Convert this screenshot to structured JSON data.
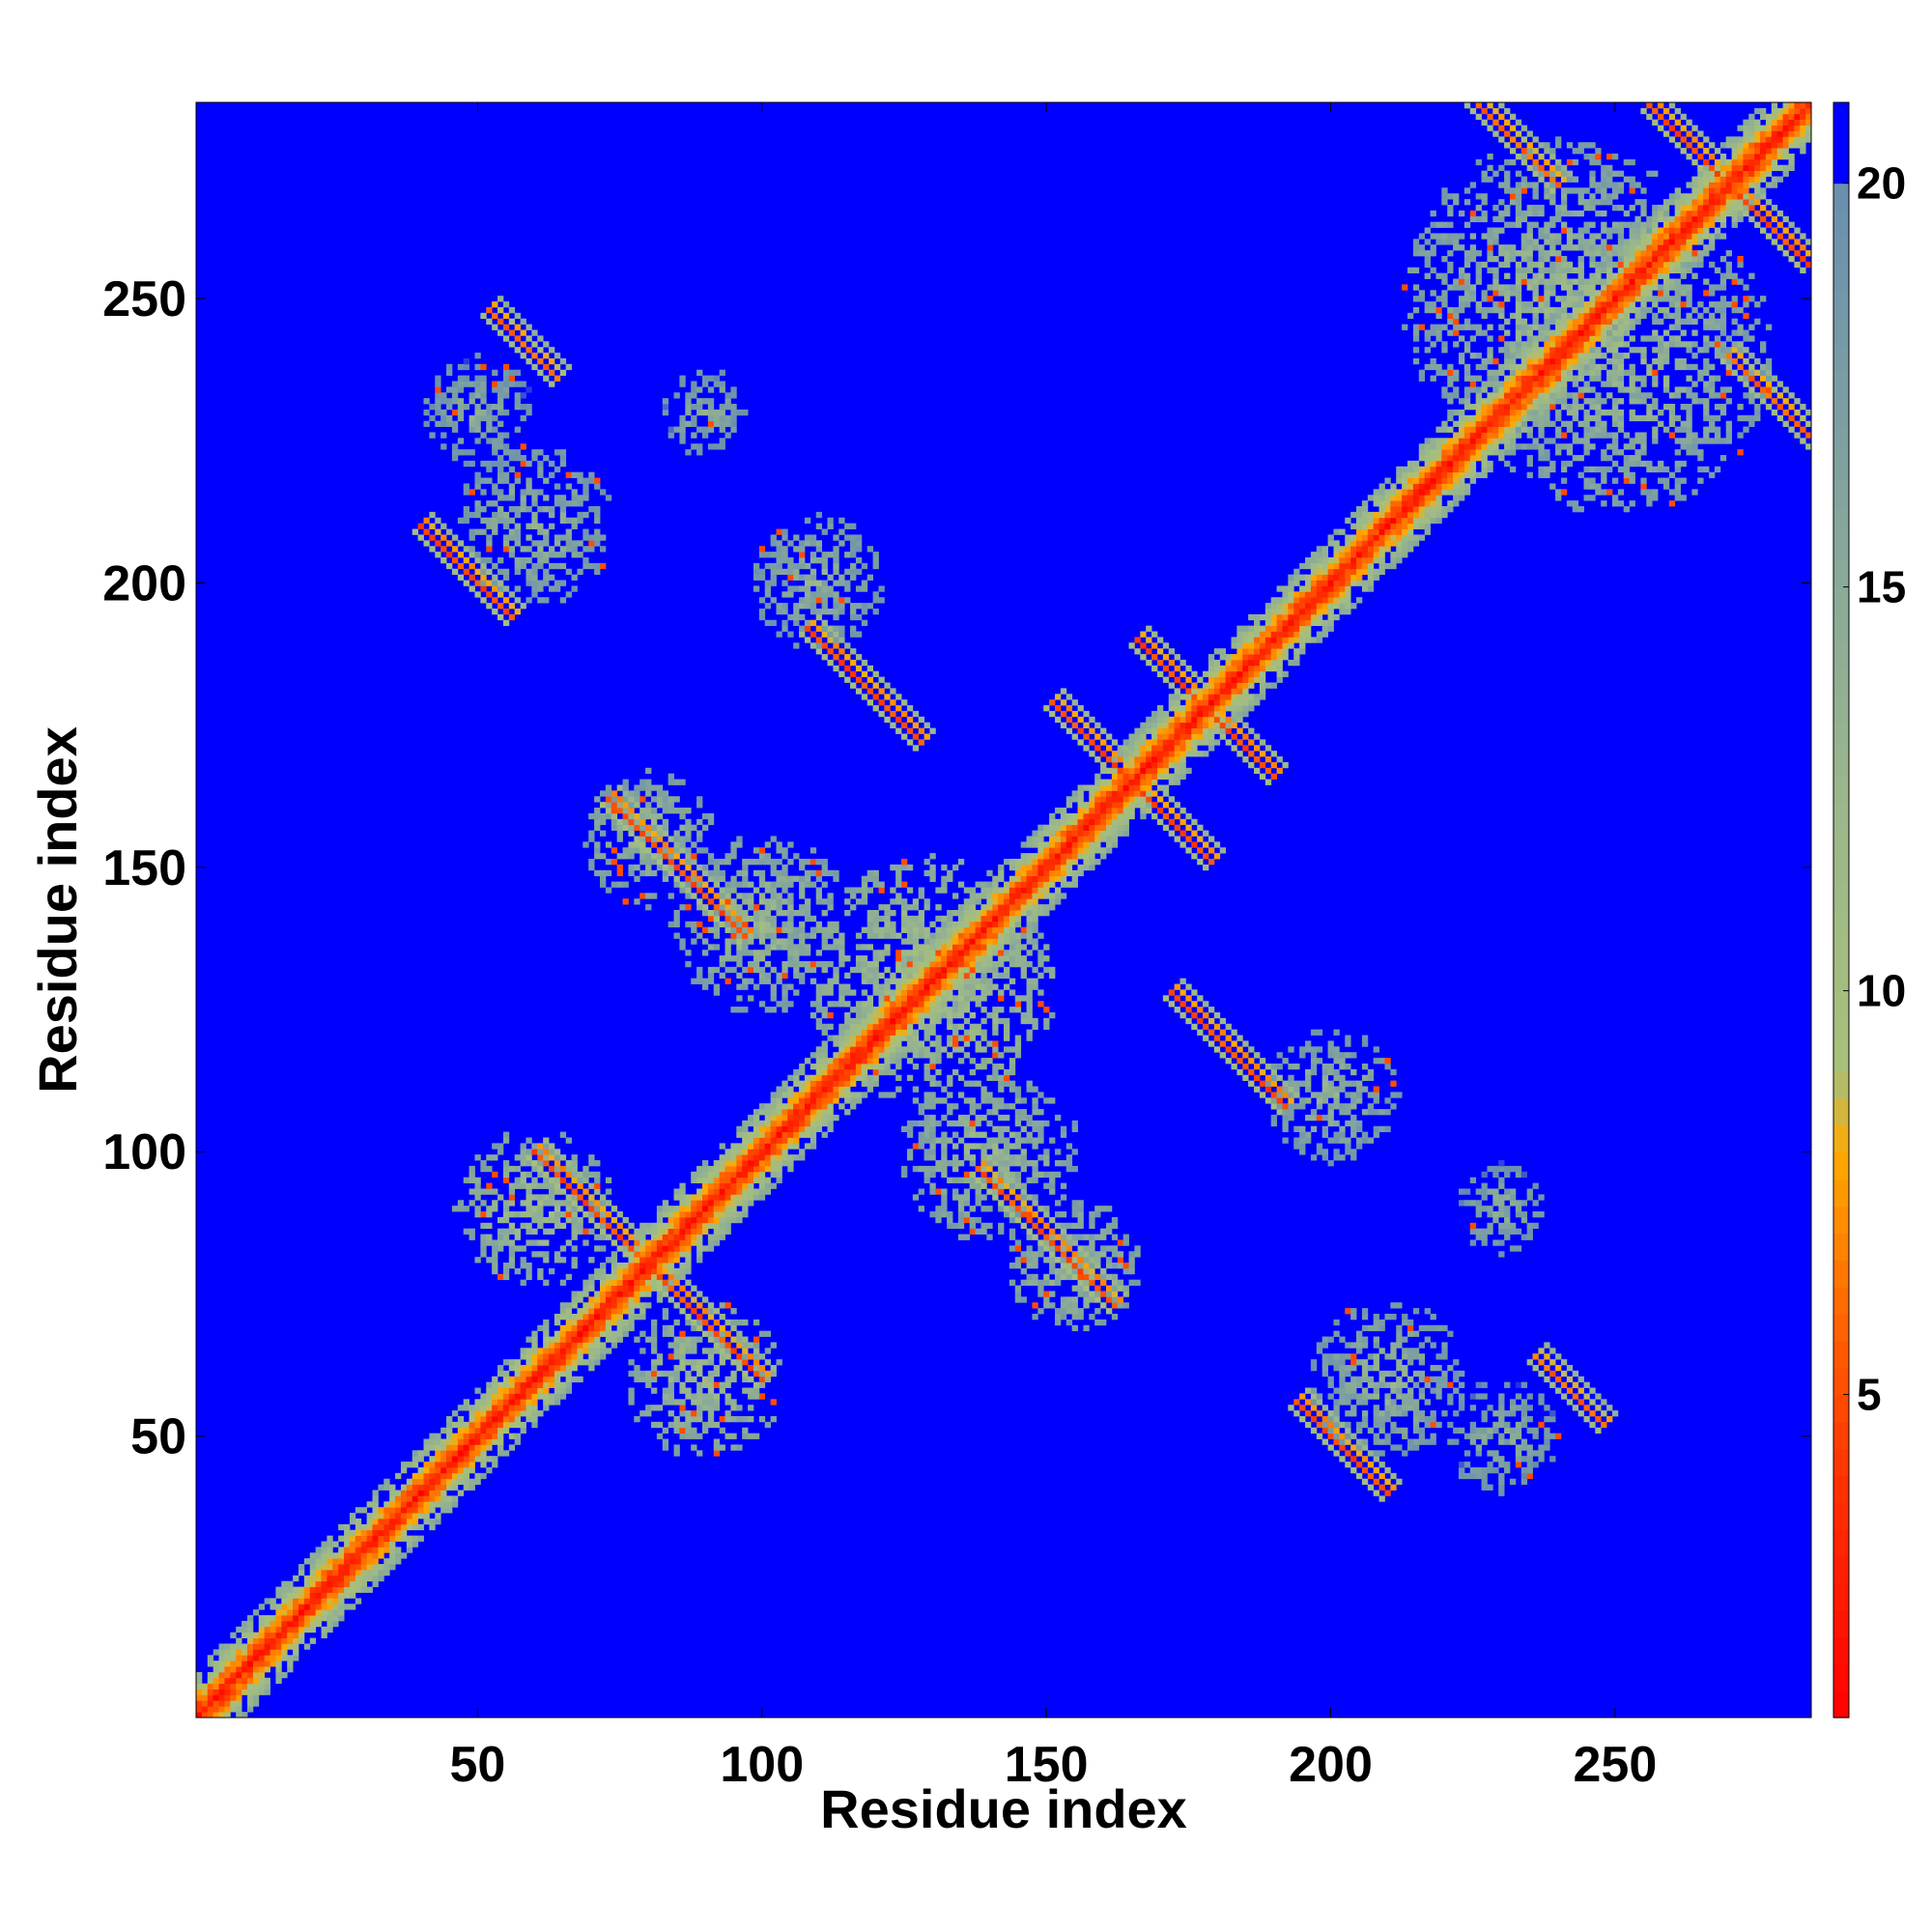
{
  "chart_data": {
    "type": "heatmap",
    "title": "",
    "xlabel": "Residue index",
    "ylabel": "Residue index",
    "xlim": [
      1,
      284
    ],
    "ylim": [
      1,
      284
    ],
    "x_ticks": [
      50,
      100,
      150,
      200,
      250
    ],
    "y_ticks": [
      50,
      100,
      150,
      200,
      250
    ],
    "colorbar": {
      "range": [
        1,
        21
      ],
      "ticks": [
        5,
        10,
        15,
        20
      ],
      "color_stops": [
        {
          "value": 1,
          "color": "#ff0000"
        },
        {
          "value": 4,
          "color": "#ff3300"
        },
        {
          "value": 6,
          "color": "#ff6600"
        },
        {
          "value": 8,
          "color": "#ffaa00"
        },
        {
          "value": 9,
          "color": "#a8c07a"
        },
        {
          "value": 12,
          "color": "#9cb88a"
        },
        {
          "value": 15,
          "color": "#8aaa98"
        },
        {
          "value": 20,
          "color": "#6a8fb0"
        },
        {
          "value": 21,
          "color": "#0000ff"
        }
      ]
    },
    "background_value": 21,
    "background_color": "#0000ff",
    "diagonal_value": 1,
    "contact_features": [
      {
        "kind": "diagonal_band",
        "from": 1,
        "to": 284,
        "min_value": 1,
        "halfwidth": 8
      },
      {
        "kind": "antiparallel",
        "center": [
          80,
          80
        ],
        "length": 20,
        "value": 4
      },
      {
        "kind": "antiparallel",
        "center": [
          85,
          150
        ],
        "length": 12,
        "value": 4
      },
      {
        "kind": "antiparallel",
        "center": [
          118,
          182
        ],
        "length": 10,
        "value": 4
      },
      {
        "kind": "antiparallel",
        "center": [
          150,
          85
        ],
        "length": 12,
        "value": 4
      },
      {
        "kind": "antiparallel",
        "center": [
          182,
          118
        ],
        "length": 10,
        "value": 4
      },
      {
        "kind": "antiparallel",
        "center": [
          165,
          165
        ],
        "length": 14,
        "value": 4
      },
      {
        "kind": "antiparallel",
        "center": [
          178,
          178
        ],
        "length": 12,
        "value": 4
      },
      {
        "kind": "antiparallel",
        "center": [
          202,
          48
        ],
        "length": 8,
        "value": 4
      },
      {
        "kind": "antiparallel",
        "center": [
          48,
          202
        ],
        "length": 8,
        "value": 4
      },
      {
        "kind": "antiparallel",
        "center": [
          270,
          270
        ],
        "length": 14,
        "value": 4
      },
      {
        "kind": "antiparallel",
        "center": [
          232,
          278
        ],
        "length": 8,
        "value": 5
      },
      {
        "kind": "antiparallel",
        "center": [
          278,
          232
        ],
        "length": 8,
        "value": 5
      },
      {
        "kind": "antiparallel",
        "center": [
          242,
          58
        ],
        "length": 6,
        "value": 5
      },
      {
        "kind": "antiparallel",
        "center": [
          58,
          242
        ],
        "length": 6,
        "value": 5
      },
      {
        "kind": "cluster",
        "center": [
          130,
          130
        ],
        "radius": 22,
        "value": 13
      },
      {
        "kind": "cluster",
        "center": [
          100,
          140
        ],
        "radius": 16,
        "value": 15
      },
      {
        "kind": "cluster",
        "center": [
          140,
          100
        ],
        "radius": 16,
        "value": 15
      },
      {
        "kind": "cluster",
        "center": [
          90,
          60
        ],
        "radius": 14,
        "value": 14
      },
      {
        "kind": "cluster",
        "center": [
          60,
          90
        ],
        "radius": 14,
        "value": 14
      },
      {
        "kind": "cluster",
        "center": [
          240,
          250
        ],
        "radius": 28,
        "value": 15
      },
      {
        "kind": "cluster",
        "center": [
          250,
          240
        ],
        "radius": 28,
        "value": 15
      },
      {
        "kind": "cluster",
        "center": [
          210,
          60
        ],
        "radius": 14,
        "value": 16
      },
      {
        "kind": "cluster",
        "center": [
          60,
          210
        ],
        "radius": 14,
        "value": 16
      },
      {
        "kind": "cluster",
        "center": [
          110,
          200
        ],
        "radius": 12,
        "value": 16
      },
      {
        "kind": "cluster",
        "center": [
          200,
          110
        ],
        "radius": 12,
        "value": 16
      },
      {
        "kind": "cluster",
        "center": [
          155,
          80
        ],
        "radius": 12,
        "value": 15
      },
      {
        "kind": "cluster",
        "center": [
          80,
          155
        ],
        "radius": 12,
        "value": 15
      },
      {
        "kind": "cluster",
        "center": [
          50,
          230
        ],
        "radius": 10,
        "value": 17
      },
      {
        "kind": "cluster",
        "center": [
          230,
          50
        ],
        "radius": 10,
        "value": 17
      },
      {
        "kind": "cluster",
        "center": [
          90,
          230
        ],
        "radius": 8,
        "value": 17
      },
      {
        "kind": "cluster",
        "center": [
          230,
          90
        ],
        "radius": 8,
        "value": 17
      }
    ]
  }
}
